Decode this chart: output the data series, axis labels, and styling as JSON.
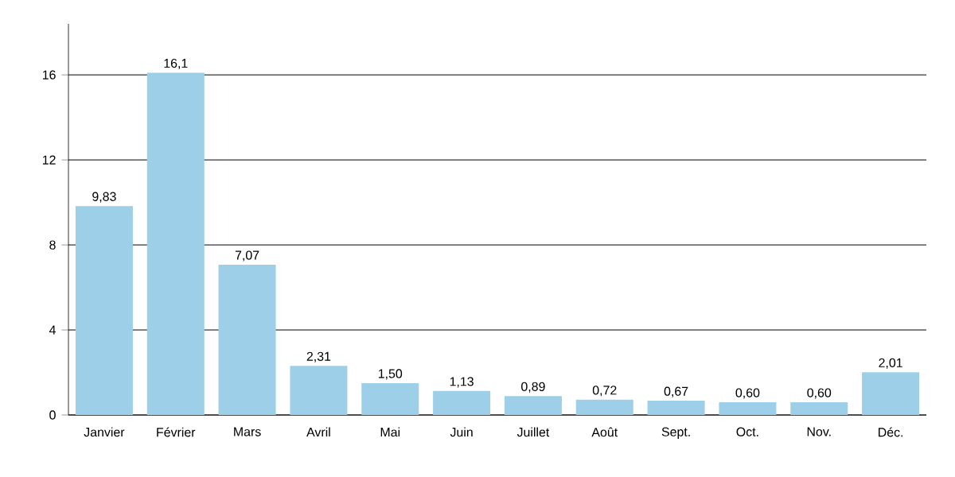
{
  "chart_data": {
    "type": "bar",
    "categories": [
      "Janvier",
      "Février",
      "Mars",
      "Avril",
      "Mai",
      "Juin",
      "Juillet",
      "Août",
      "Sept.",
      "Oct.",
      "Nov.",
      "Déc."
    ],
    "values": [
      9.83,
      16.1,
      7.07,
      2.31,
      1.5,
      1.13,
      0.89,
      0.72,
      0.67,
      0.6,
      0.6,
      2.01
    ],
    "value_labels": [
      "9,83",
      "16,1",
      "7,07",
      "2,31",
      "1,50",
      "1,13",
      "0,89",
      "0,72",
      "0,67",
      "0,60",
      "0,60",
      "2,01"
    ],
    "color": "#9ecfe8",
    "ylim": [
      0,
      18.4
    ],
    "yticks": [
      0,
      4,
      8,
      12,
      16
    ],
    "grid": "y"
  }
}
